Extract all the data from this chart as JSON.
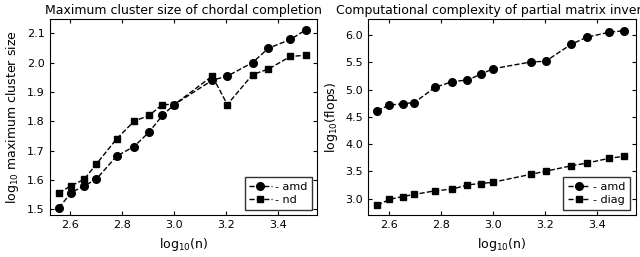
{
  "plot1": {
    "title": "Maximum cluster size of chordal completion",
    "xlabel": "log$_{10}$(n)",
    "ylabel": "log$_{10}$ maximum cluster size",
    "amd_x": [
      2.556,
      2.602,
      2.653,
      2.699,
      2.778,
      2.845,
      2.903,
      2.954,
      3.0,
      3.146,
      3.204,
      3.301,
      3.362,
      3.447,
      3.505
    ],
    "amd_y": [
      1.505,
      1.556,
      1.58,
      1.602,
      1.681,
      1.714,
      1.763,
      1.82,
      1.857,
      1.94,
      1.954,
      2.0,
      2.049,
      2.079,
      2.111
    ],
    "nd_x": [
      2.556,
      2.602,
      2.653,
      2.699,
      2.778,
      2.845,
      2.903,
      2.954,
      3.0,
      3.146,
      3.204,
      3.301,
      3.362,
      3.447,
      3.505
    ],
    "nd_y": [
      1.556,
      1.58,
      1.602,
      1.653,
      1.74,
      1.8,
      1.82,
      1.857,
      1.857,
      1.954,
      1.857,
      1.959,
      1.978,
      2.021,
      2.025
    ],
    "xlim": [
      2.52,
      3.55
    ],
    "ylim": [
      1.48,
      2.15
    ],
    "xticks": [
      2.6,
      2.8,
      3.0,
      3.2,
      3.4
    ],
    "yticks": [
      1.5,
      1.6,
      1.7,
      1.8,
      1.9,
      2.0,
      2.1
    ]
  },
  "plot2": {
    "title": "Computational complexity of partial matrix inversion",
    "xlabel": "log$_{10}$(n)",
    "ylabel": "log$_{10}$(flops)",
    "amd_x": [
      2.556,
      2.602,
      2.653,
      2.699,
      2.778,
      2.845,
      2.903,
      2.954,
      3.0,
      3.146,
      3.204,
      3.301,
      3.362,
      3.447,
      3.505
    ],
    "amd_y": [
      4.613,
      4.716,
      4.74,
      4.763,
      5.041,
      5.146,
      5.176,
      5.279,
      5.38,
      5.505,
      5.519,
      5.826,
      5.959,
      6.049,
      6.079
    ],
    "diag_x": [
      2.556,
      2.602,
      2.653,
      2.699,
      2.778,
      2.845,
      2.903,
      2.954,
      3.0,
      3.146,
      3.204,
      3.301,
      3.362,
      3.447,
      3.505
    ],
    "diag_y": [
      2.881,
      2.987,
      3.041,
      3.079,
      3.146,
      3.176,
      3.255,
      3.279,
      3.301,
      3.447,
      3.505,
      3.602,
      3.653,
      3.74,
      3.778
    ],
    "xlim": [
      2.52,
      3.55
    ],
    "ylim": [
      2.7,
      6.3
    ],
    "xticks": [
      2.6,
      2.8,
      3.0,
      3.2,
      3.4
    ],
    "yticks": [
      3.0,
      3.5,
      4.0,
      4.5,
      5.0,
      5.5,
      6.0
    ]
  },
  "line_color": "#000000",
  "amd_marker": "o",
  "nd_marker": "s",
  "diag_marker": "s",
  "amd_markersize": 5.5,
  "nd_markersize": 4.5,
  "linestyle": "--",
  "linewidth": 1.0,
  "background_color": "#ffffff",
  "legend_fontsize": 8,
  "tick_fontsize": 8,
  "label_fontsize": 9,
  "title_fontsize": 9
}
